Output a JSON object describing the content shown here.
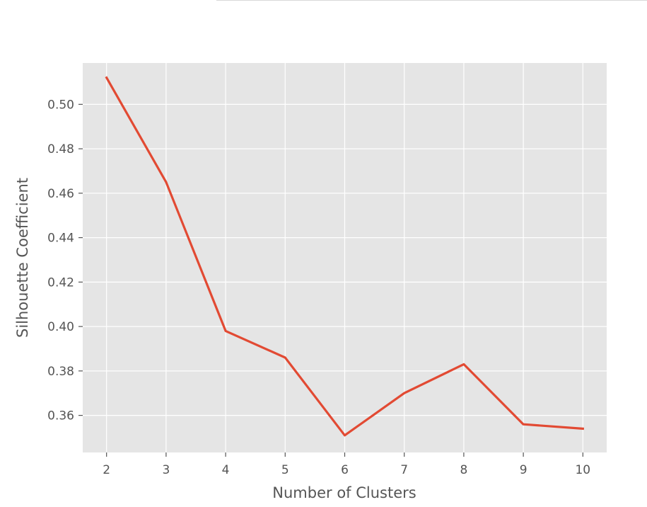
{
  "chart_data": {
    "type": "line",
    "title": "",
    "xlabel": "Number of Clusters",
    "ylabel": "Silhouette Coefficient",
    "x": [
      2,
      3,
      4,
      5,
      6,
      7,
      8,
      9,
      10
    ],
    "series": [
      {
        "values": [
          0.512,
          0.465,
          0.398,
          0.386,
          0.351,
          0.37,
          0.383,
          0.356,
          0.354
        ]
      }
    ],
    "xticks": [
      "2",
      "3",
      "4",
      "5",
      "6",
      "7",
      "8",
      "9",
      "10"
    ],
    "yticks": [
      "0.36",
      "0.38",
      "0.40",
      "0.42",
      "0.44",
      "0.46",
      "0.48",
      "0.50"
    ],
    "xlim": [
      1.6,
      10.4
    ],
    "ylim": [
      0.3433,
      0.5186
    ],
    "grid": true,
    "style": "ggplot",
    "colors": {
      "line": "#e24a33",
      "plot_bg": "#e5e5e5",
      "grid": "#ffffff",
      "text": "#555555"
    }
  }
}
